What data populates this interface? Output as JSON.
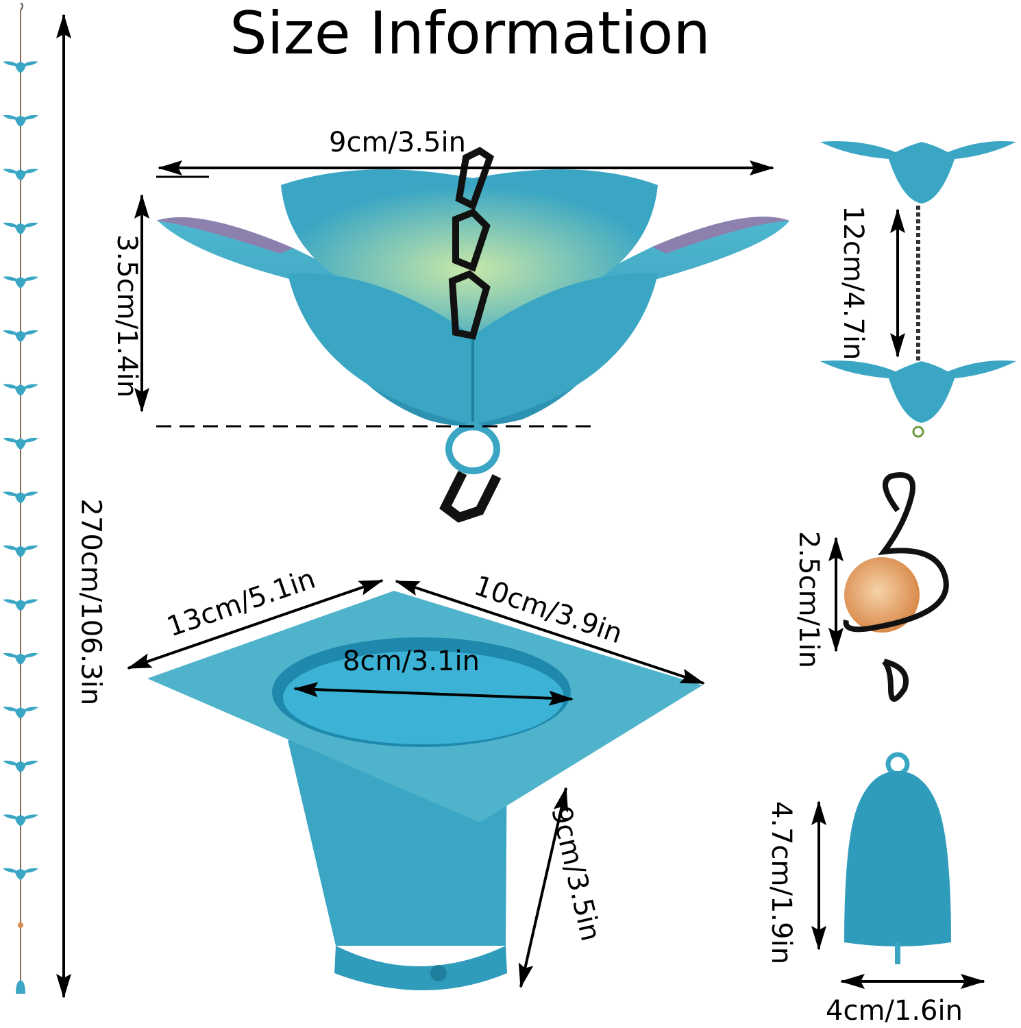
{
  "title": "Size Information",
  "colors": {
    "product": "#3aa6c4",
    "product_dark": "#1f7f9c",
    "petal_tip": "#a86aa0",
    "chain": "#111111",
    "marble": "#e8a86a",
    "arrow": "#000000"
  },
  "dimensions": {
    "total_length": "270cm/106.3in",
    "cup_width": "9cm/3.5in",
    "cup_height": "3.5cm/1.4in",
    "cup_spacing": "12cm/4.7in",
    "marble_diameter": "2.5cm/1in",
    "bell_height": "4.7cm/1.9in",
    "bell_width": "4cm/1.6in",
    "gutter_side_a": "13cm/5.1in",
    "gutter_side_b": "10cm/3.9in",
    "gutter_opening": "8cm/3.1in",
    "gutter_depth": "9cm/3.5in"
  }
}
